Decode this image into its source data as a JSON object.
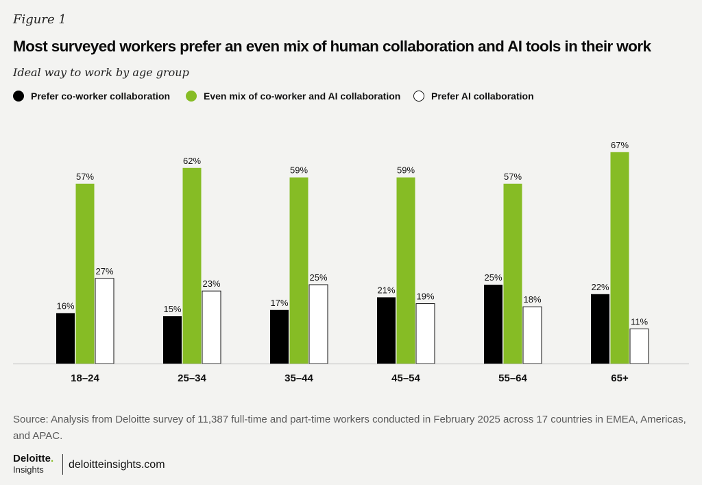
{
  "figure_label": "Figure 1",
  "source": "Source: Analysis from Deloitte survey of 11,387 full-time and part-time workers conducted in February 2025 across 17 countries in EMEA, Americas, and APAC.",
  "brand": {
    "name": "Deloitte",
    "dot": ".",
    "sub": "Insights",
    "url": "deloitteinsights.com"
  },
  "chart_data": {
    "type": "bar",
    "title": "Most surveyed workers prefer an even mix of human collaboration and AI tools in their work",
    "subtitle": "Ideal way to work by age group",
    "xlabel": "",
    "ylabel": "",
    "ylim": [
      0,
      70
    ],
    "grid": false,
    "legend_position": "top-left",
    "categories": [
      "18–24",
      "25–34",
      "35–44",
      "45–54",
      "55–64",
      "65+"
    ],
    "series": [
      {
        "name": "Prefer co-worker collaboration",
        "color": "#000000",
        "values": [
          16,
          15,
          17,
          21,
          25,
          22
        ],
        "labels": [
          "16%",
          "15%",
          "17%",
          "21%",
          "25%",
          "22%"
        ]
      },
      {
        "name": "Even mix of co-worker and AI collaboration",
        "color": "#86bc25",
        "values": [
          57,
          62,
          59,
          59,
          57,
          67
        ],
        "labels": [
          "57%",
          "62%",
          "59%",
          "59%",
          "57%",
          "67%"
        ]
      },
      {
        "name": "Prefer AI collaboration",
        "color": "#ffffff",
        "values": [
          27,
          23,
          25,
          19,
          18,
          11
        ],
        "labels": [
          "27%",
          "23%",
          "25%",
          "19%",
          "18%",
          "11%"
        ]
      }
    ]
  }
}
